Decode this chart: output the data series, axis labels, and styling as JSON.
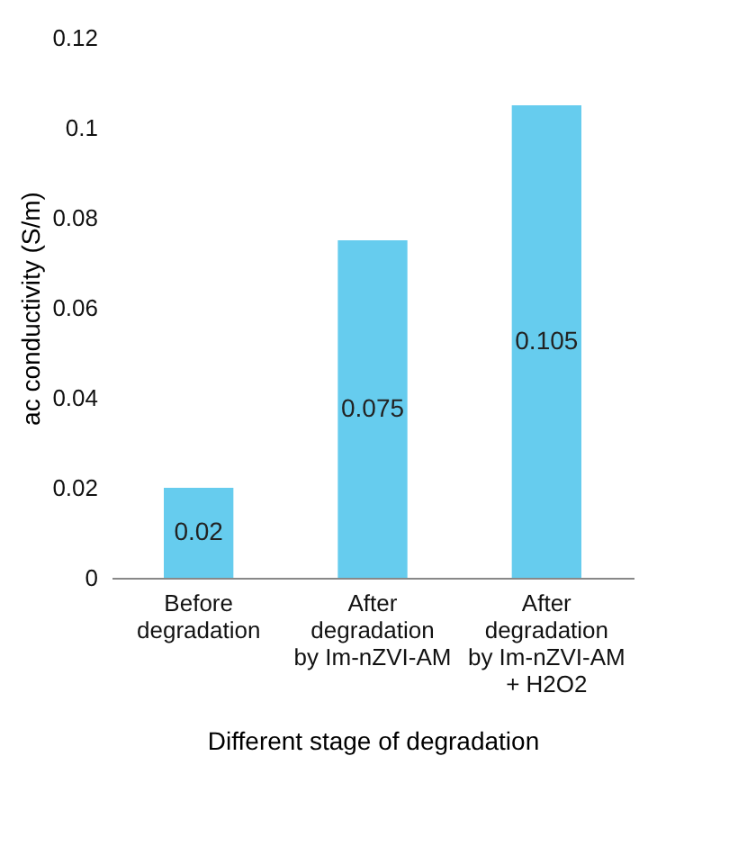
{
  "chart_data": {
    "type": "bar",
    "xlabel": "Different stage of degradation",
    "ylabel": "ac conductivity (S/m)",
    "categories": [
      "Before degradation",
      "After degradation by Im-nZVI-AM",
      "After degradation by Im-nZVI-AM + H2O2"
    ],
    "values": [
      0.02,
      0.075,
      0.105
    ],
    "color": "#66ccee",
    "ylim": [
      0,
      0.12
    ],
    "yticks": [
      0,
      0.02,
      0.04,
      0.06,
      0.08,
      0.1,
      0.12
    ],
    "grid": false,
    "data_labels": true
  }
}
